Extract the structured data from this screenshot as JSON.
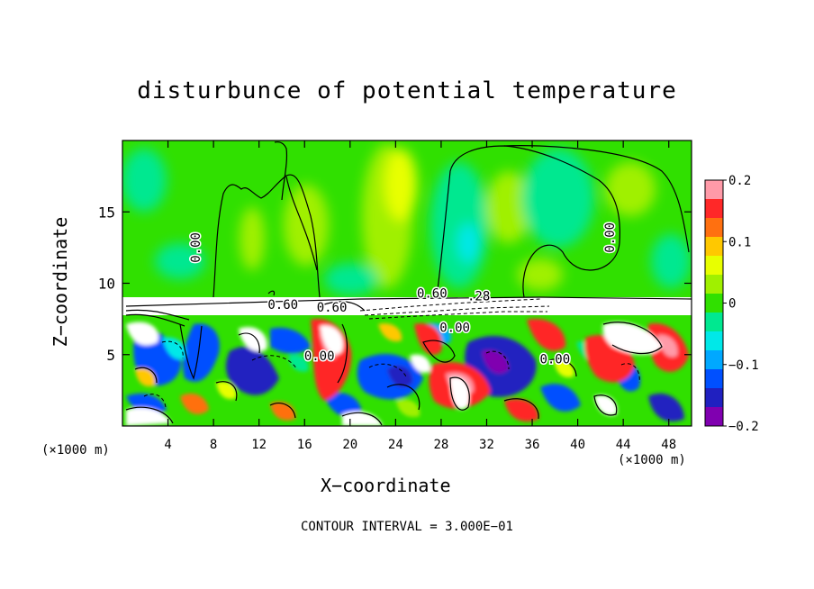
{
  "chart_data": {
    "type": "heatmap",
    "title": "disturbunce of potential temperature",
    "xlabel": "X−coordinate",
    "ylabel": "Z−coordinate",
    "x_unit_label": "(×1000 m)",
    "x_unit_label_right": "(×1000 m)",
    "xlim": [
      0,
      50
    ],
    "ylim": [
      0,
      20
    ],
    "x_ticks": [
      4,
      8,
      12,
      16,
      20,
      24,
      28,
      32,
      36,
      40,
      44,
      48
    ],
    "y_ticks": [
      5,
      10,
      15
    ],
    "colorbar": {
      "min": -0.2,
      "max": 0.2,
      "ticks": [
        "0.2",
        "0.1",
        "0",
        "−0.1",
        "−0.2"
      ],
      "tick_values": [
        0.2,
        0.1,
        0,
        -0.1,
        -0.2
      ],
      "colors": [
        "#ff9aa8",
        "#ff2828",
        "#ff7010",
        "#ffc800",
        "#e8ff00",
        "#a0f000",
        "#30e000",
        "#00e890",
        "#00e8e8",
        "#00a8ff",
        "#0050ff",
        "#2020c0",
        "#8000b0"
      ]
    },
    "contour_labels": [
      {
        "text": "0.00",
        "x": 6.8,
        "z": 12.5
      },
      {
        "text": "0.00",
        "x": 43.2,
        "z": 13.2
      },
      {
        "text": "0.60",
        "x": 14.1,
        "z": 8.2
      },
      {
        "text": "0.60",
        "x": 18.4,
        "z": 8.0
      },
      {
        "text": "0.60",
        "x": 27.2,
        "z": 9.0
      },
      {
        "text": ".28",
        "x": 31.3,
        "z": 8.8
      },
      {
        "text": "0.00",
        "x": 29.2,
        "z": 6.6
      },
      {
        "text": "0.00",
        "x": 17.3,
        "z": 4.6
      },
      {
        "text": "0.00",
        "x": 38.0,
        "z": 4.4
      }
    ],
    "contour_interval_text": "CONTOUR INTERVAL = 3.000E−01"
  }
}
